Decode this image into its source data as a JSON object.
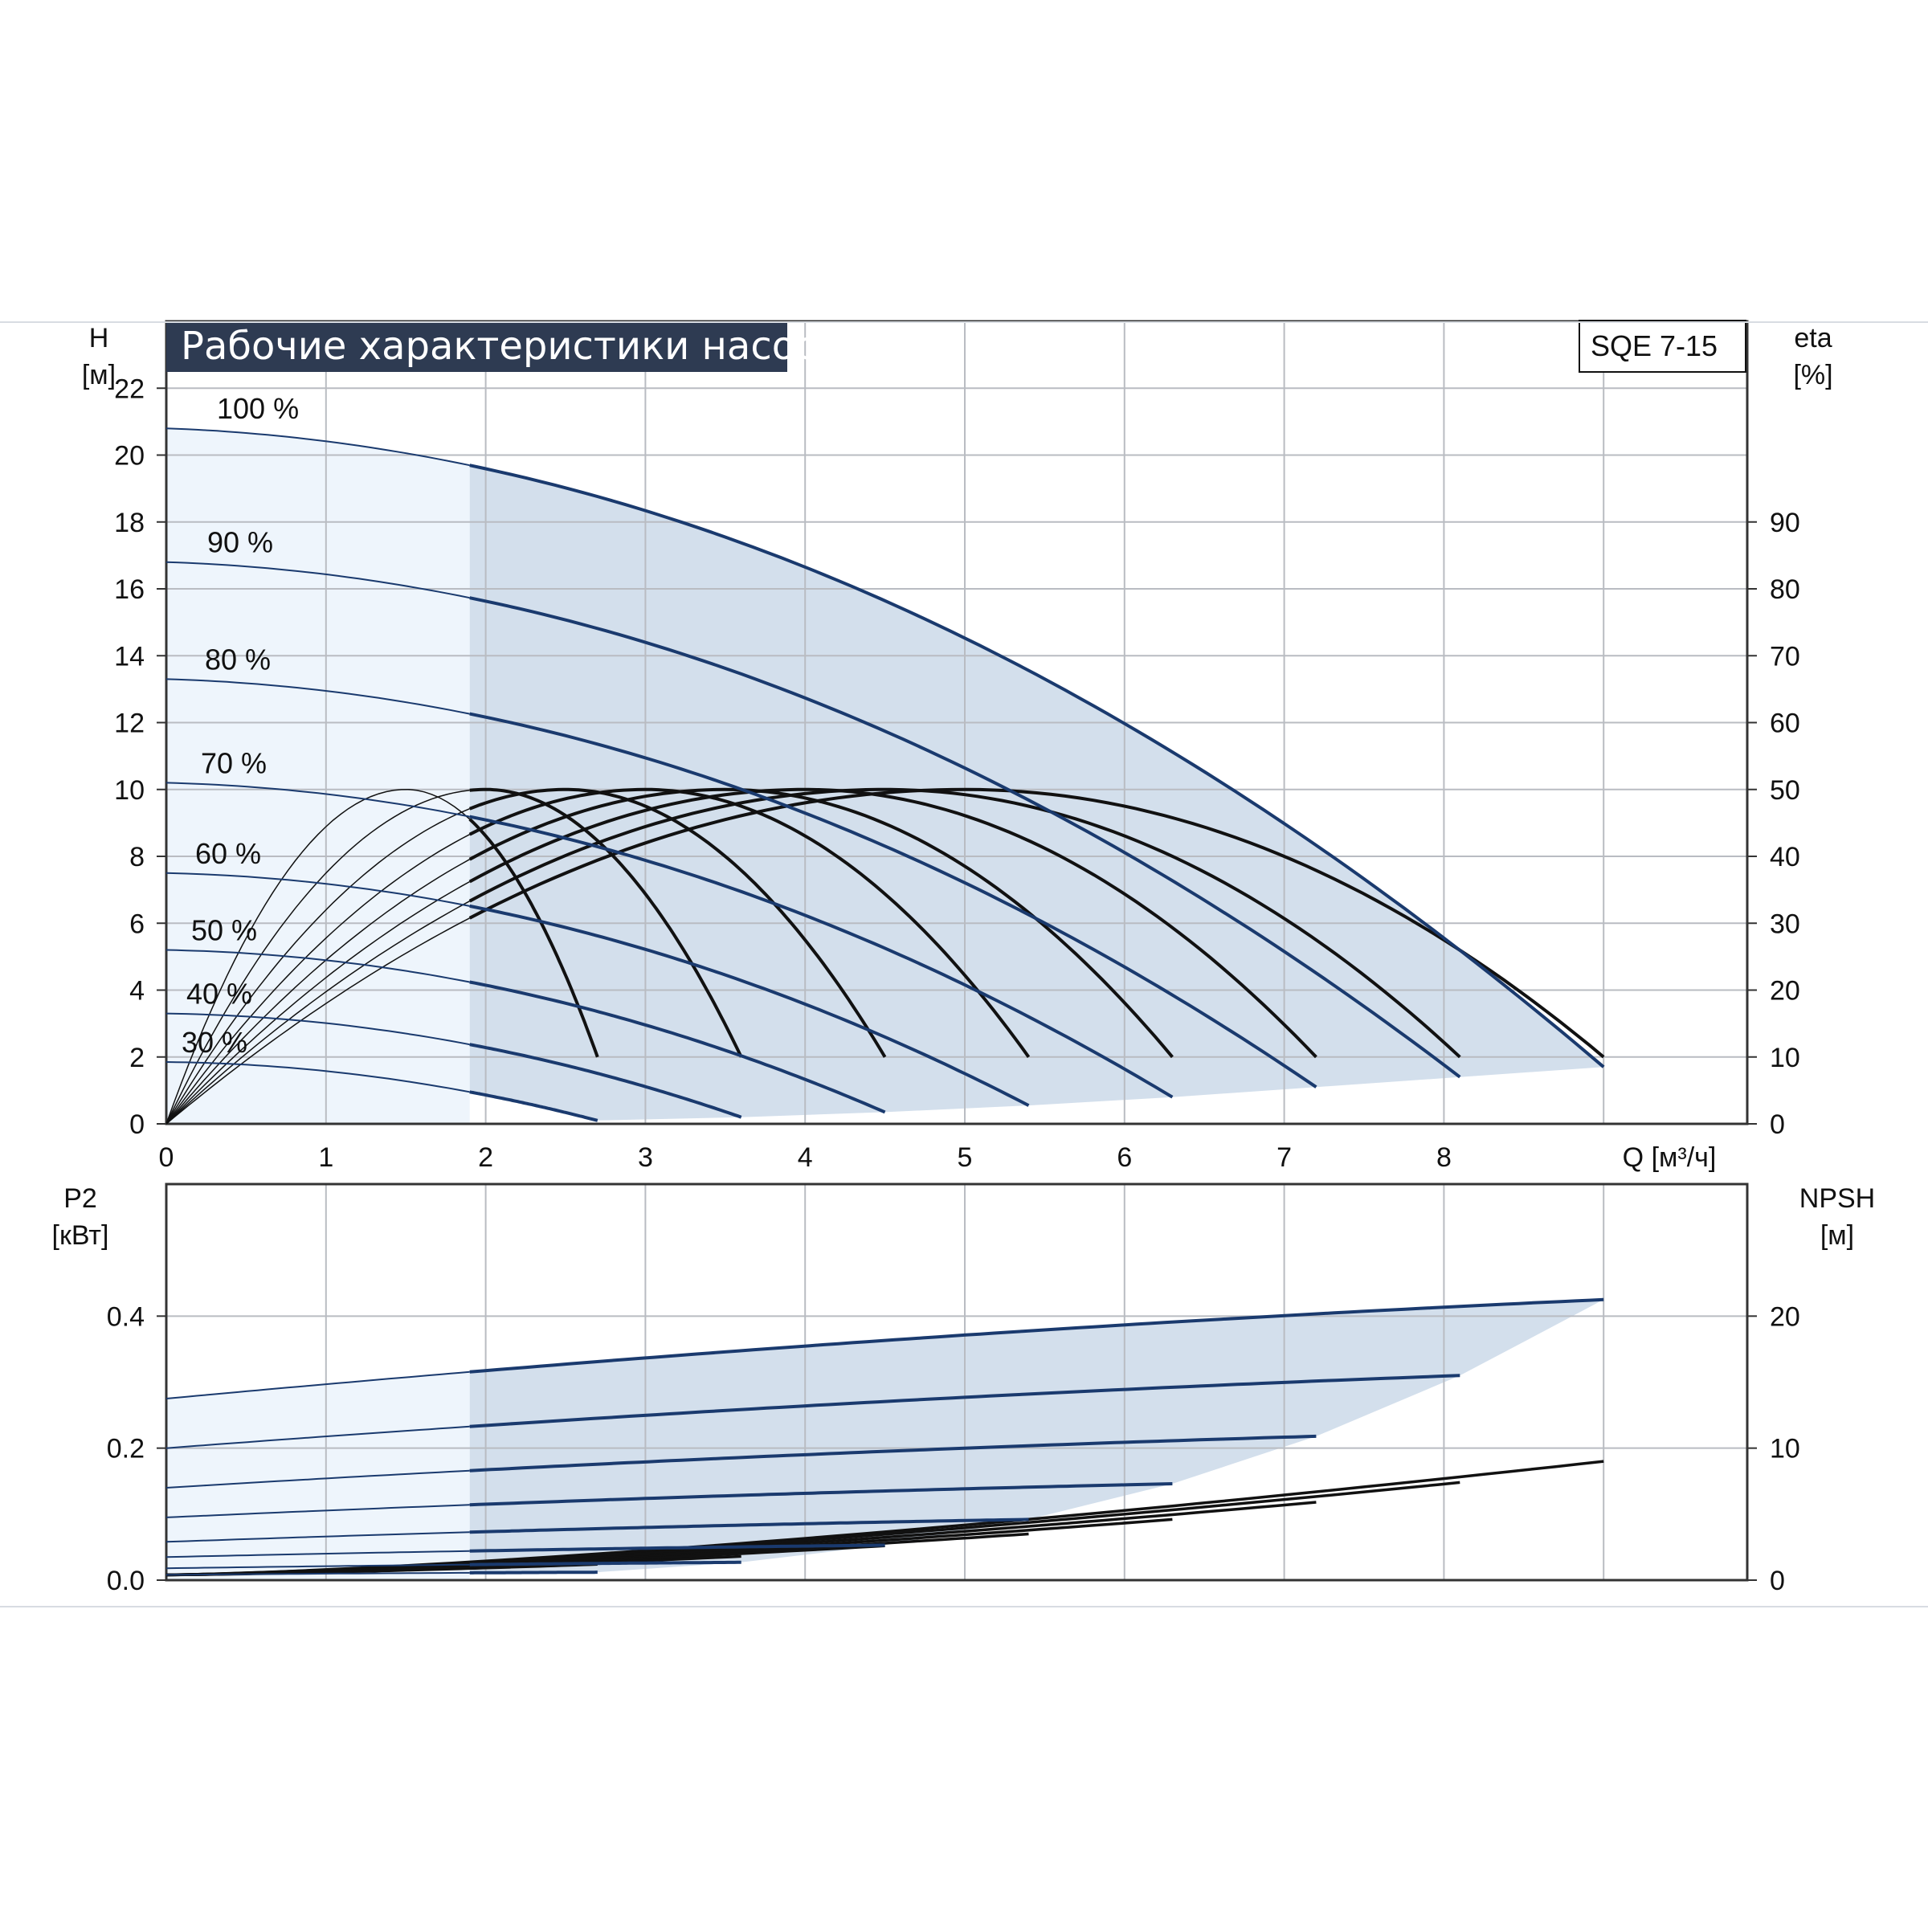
{
  "colors": {
    "grid": "#b9bcc2",
    "frame": "#333333",
    "region_dark": "#d3dfec",
    "region_light": "#eef5fc",
    "head_curve": "#1a3a6e",
    "efficiency_curve": "#111111",
    "title_bg": "#2e3b52",
    "title_text": "#ffffff"
  },
  "header": {
    "title": "Рабочие характеристики насоса",
    "model": "SQE 7-15"
  },
  "chart_data": [
    {
      "type": "line",
      "name": "head-efficiency",
      "x_label": "Q [м³/ч]",
      "x_ticks": [
        "0",
        "1",
        "2",
        "3",
        "4",
        "5",
        "6",
        "7",
        "8"
      ],
      "xlim": [
        0,
        9.9
      ],
      "y_left_label_top": "H",
      "y_left_label_unit": "[м]",
      "y_left_ticks": [
        "0",
        "2",
        "4",
        "6",
        "8",
        "10",
        "12",
        "14",
        "16",
        "18",
        "20",
        "22"
      ],
      "ylim_left": [
        0,
        24
      ],
      "y_right_label_top": "eta",
      "y_right_label_unit": "[%]",
      "y_right_ticks": [
        "0",
        "10",
        "20",
        "30",
        "40",
        "50",
        "60",
        "70",
        "80",
        "90"
      ],
      "ylim_right": [
        0,
        120
      ],
      "grid": true,
      "operating_range_min_q": 1.9,
      "head_curves": [
        {
          "label": "100 %",
          "speed": 1.0,
          "h0": 20.8,
          "qmax": 9.0,
          "h_end": 1.7
        },
        {
          "label": "90 %",
          "speed": 0.9,
          "h0": 16.8,
          "qmax": 8.1,
          "h_end": 1.4
        },
        {
          "label": "80 %",
          "speed": 0.8,
          "h0": 13.3,
          "qmax": 7.2,
          "h_end": 1.1
        },
        {
          "label": "70 %",
          "speed": 0.7,
          "h0": 10.2,
          "qmax": 6.3,
          "h_end": 0.8
        },
        {
          "label": "60 %",
          "speed": 0.6,
          "h0": 7.5,
          "qmax": 5.4,
          "h_end": 0.55
        },
        {
          "label": "50 %",
          "speed": 0.5,
          "h0": 5.2,
          "qmax": 4.5,
          "h_end": 0.35
        },
        {
          "label": "40 %",
          "speed": 0.4,
          "h0": 3.3,
          "qmax": 3.6,
          "h_end": 0.2
        },
        {
          "label": "30 %",
          "speed": 0.3,
          "h0": 1.85,
          "qmax": 2.7,
          "h_end": 0.1
        }
      ],
      "efficiency_curves": [
        {
          "speed": 1.0,
          "peak_q": 5.0,
          "peak_eta": 50,
          "end_q": 9.0,
          "end_eta": 10
        },
        {
          "speed": 0.9,
          "peak_q": 4.5,
          "peak_eta": 50,
          "end_q": 8.1,
          "end_eta": 10
        },
        {
          "speed": 0.8,
          "peak_q": 4.0,
          "peak_eta": 50,
          "end_q": 7.2,
          "end_eta": 10
        },
        {
          "speed": 0.7,
          "peak_q": 3.5,
          "peak_eta": 50,
          "end_q": 6.3,
          "end_eta": 10
        },
        {
          "speed": 0.6,
          "peak_q": 3.0,
          "peak_eta": 50,
          "end_q": 5.4,
          "end_eta": 10
        },
        {
          "speed": 0.5,
          "peak_q": 2.5,
          "peak_eta": 50,
          "end_q": 4.5,
          "end_eta": 10
        },
        {
          "speed": 0.4,
          "peak_q": 2.0,
          "peak_eta": 50,
          "end_q": 3.6,
          "end_eta": 10
        },
        {
          "speed": 0.3,
          "peak_q": 1.5,
          "peak_eta": 50,
          "end_q": 2.7,
          "end_eta": 10
        }
      ]
    },
    {
      "type": "line",
      "name": "power-npsh",
      "y_left_label_top": "P2",
      "y_left_label_unit": "[кВт]",
      "y_left_ticks": [
        "0.0",
        "0.2",
        "0.4"
      ],
      "ylim_left": [
        0,
        0.6
      ],
      "y_right_label_top": "NPSH",
      "y_right_label_unit": "[м]",
      "y_right_ticks": [
        "0",
        "10",
        "20"
      ],
      "ylim_right": [
        0,
        30
      ],
      "grid": true,
      "power_curves": [
        {
          "speed": 1.0,
          "p0": 0.275,
          "qmax": 9.0,
          "p_end": 0.425
        },
        {
          "speed": 0.9,
          "p0": 0.2,
          "qmax": 8.1,
          "p_end": 0.31
        },
        {
          "speed": 0.8,
          "p0": 0.14,
          "qmax": 7.2,
          "p_end": 0.218
        },
        {
          "speed": 0.7,
          "p0": 0.095,
          "qmax": 6.3,
          "p_end": 0.146
        },
        {
          "speed": 0.6,
          "p0": 0.058,
          "qmax": 5.4,
          "p_end": 0.092
        },
        {
          "speed": 0.5,
          "p0": 0.035,
          "qmax": 4.5,
          "p_end": 0.053
        },
        {
          "speed": 0.4,
          "p0": 0.018,
          "qmax": 3.6,
          "p_end": 0.027
        },
        {
          "speed": 0.3,
          "p0": 0.008,
          "qmax": 2.7,
          "p_end": 0.012
        }
      ],
      "npsh_curves": [
        {
          "speed": 1.0,
          "qmax": 9.0,
          "n_end": 8.6
        },
        {
          "speed": 0.9,
          "qmax": 8.1,
          "n_end": 7.0
        },
        {
          "speed": 0.8,
          "qmax": 7.2,
          "n_end": 5.5
        },
        {
          "speed": 0.7,
          "qmax": 6.3,
          "n_end": 4.2
        },
        {
          "speed": 0.6,
          "qmax": 5.4,
          "n_end": 3.1
        },
        {
          "speed": 0.5,
          "qmax": 4.5,
          "n_end": 2.2
        },
        {
          "speed": 0.4,
          "qmax": 3.6,
          "n_end": 1.4
        },
        {
          "speed": 0.3,
          "qmax": 2.7,
          "n_end": 0.8
        }
      ]
    }
  ]
}
